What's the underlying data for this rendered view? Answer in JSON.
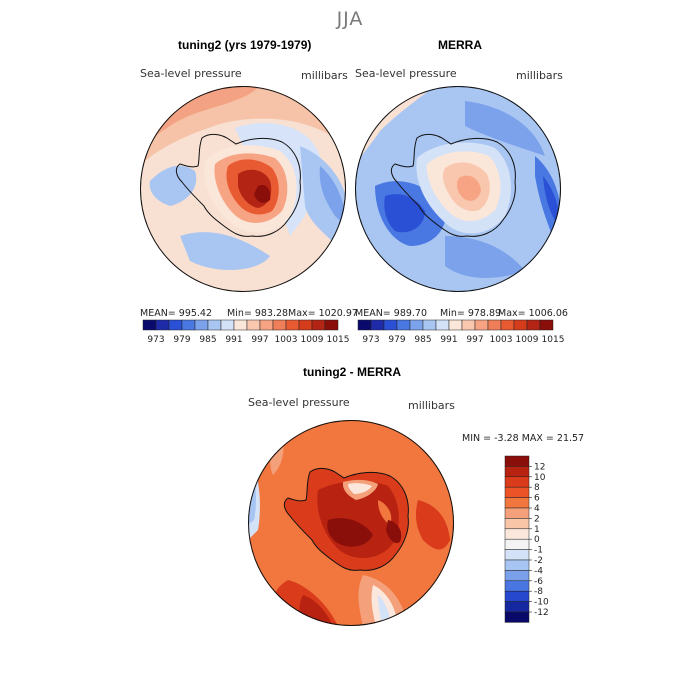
{
  "title": "JJA",
  "panels": [
    {
      "id": "model",
      "title": "tuning2 (yrs 1979-1979)",
      "variable": "Sea-level pressure",
      "units": "millibars",
      "stats": {
        "mean": "MEAN= 995.42",
        "min": "Min= 983.28",
        "max": "Max= 1020.97"
      }
    },
    {
      "id": "obs",
      "title": "MERRA",
      "variable": "Sea-level pressure",
      "units": "millibars",
      "stats": {
        "mean": "MEAN= 989.70",
        "min": "Min= 978.89",
        "max": "Max= 1006.06"
      }
    },
    {
      "id": "diff",
      "title": "tuning2 - MERRA",
      "variable": "Sea-level pressure",
      "units": "millibars",
      "minmax": "MIN =   -3.28 MAX =   21.57"
    }
  ],
  "abs_colorbar": {
    "tick_labels": [
      "973",
      "979",
      "985",
      "991",
      "997",
      "1003",
      "1009",
      "1015"
    ],
    "colors": [
      "#0a0a6e",
      "#1e2aa8",
      "#2a50d6",
      "#4a78e2",
      "#7ca2ec",
      "#a9c6f2",
      "#d4e2f8",
      "#fbe6da",
      "#f9c7ad",
      "#f6a483",
      "#f07e58",
      "#e85a32",
      "#d43c1c",
      "#b32414",
      "#8a0e0a"
    ]
  },
  "diff_colorbar": {
    "levels": [
      "12",
      "10",
      "8",
      "6",
      "4",
      "2",
      "1",
      "0",
      "-1",
      "-2",
      "-4",
      "-6",
      "-8",
      "-10",
      "-12"
    ],
    "colors": [
      "#8a0e0a",
      "#b82211",
      "#d93b1b",
      "#ec5428",
      "#f1773f",
      "#f4a07a",
      "#f9c6a8",
      "#fbe7dc",
      "#f3f3f3",
      "#d4e2f8",
      "#a8c4f2",
      "#7aa0ea",
      "#4a76e2",
      "#2548cf",
      "#1628a0",
      "#09096a"
    ]
  }
}
